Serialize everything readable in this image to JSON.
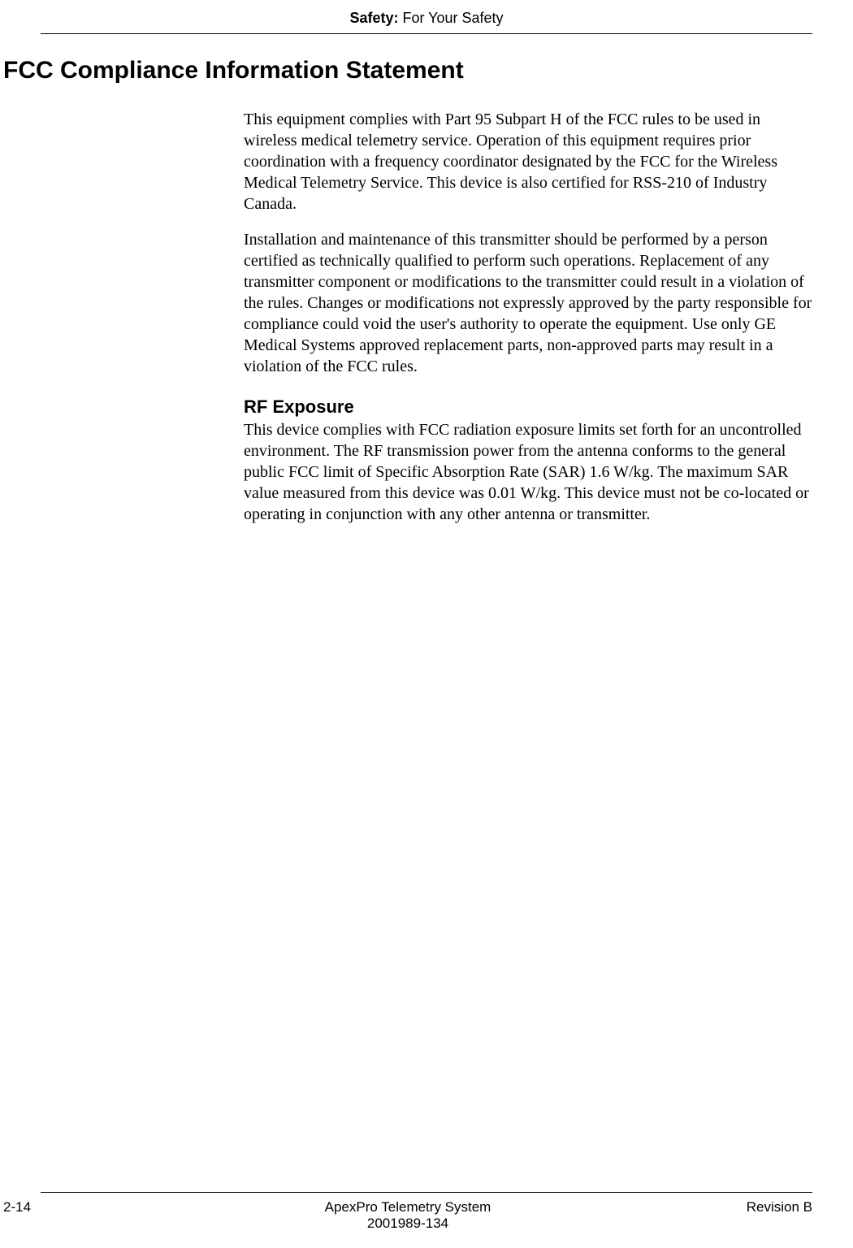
{
  "header": {
    "section_label": "Safety:",
    "section_title": "For Your Safety"
  },
  "main": {
    "heading": "FCC Compliance Information Statement",
    "paragraph1": "This equipment complies with Part 95 Subpart H of the FCC rules to be used in wireless medical telemetry service. Operation of this equipment requires prior coordination with a frequency coordinator designated by the FCC for the Wireless Medical Telemetry Service. This device is also certified for RSS-210 of Industry Canada.",
    "paragraph2": "Installation and maintenance of this transmitter should be performed by a person certified as technically qualified to perform such operations. Replacement of any transmitter component or modifications to the transmitter could result in a violation of the rules. Changes or modifications not expressly approved by the party responsible for compliance could void the user's authority to operate the equipment. Use only GE Medical Systems approved replacement parts, non-approved parts may result in a violation of the FCC rules.",
    "subheading": "RF Exposure",
    "paragraph3": "This device complies with FCC radiation exposure limits set forth for an uncontrolled environment. The RF transmission power from the antenna conforms to the general public FCC limit of Specific Absorption Rate (SAR) 1.6 W/kg. The maximum SAR value measured from this device was 0.01 W/kg. This device must not be co-located or operating in conjunction with any other antenna or transmitter."
  },
  "footer": {
    "page_number": "2-14",
    "doc_title": "ApexPro Telemetry System",
    "doc_number": "2001989-134",
    "revision": "Revision B"
  }
}
